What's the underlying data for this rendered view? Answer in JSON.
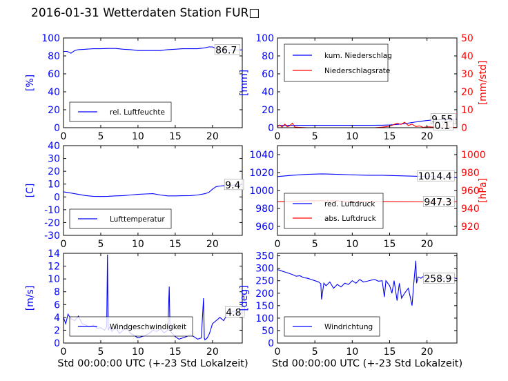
{
  "page": {
    "title": "2016-01-31 Wetterdaten Station FUR□"
  },
  "colors": {
    "blue": "#0000ff",
    "red": "#ff0000",
    "axis": "#000000"
  },
  "chart_data": [
    {
      "type": "line",
      "panel": "top-left",
      "ylabel": "[%]",
      "xlabel": "",
      "xlim": [
        0,
        24
      ],
      "ylim": [
        0,
        100
      ],
      "xticks": [
        0,
        5,
        10,
        15,
        20
      ],
      "yticks": [
        0,
        20,
        40,
        60,
        80,
        100
      ],
      "legend_position": "lower-left",
      "annotation": {
        "text": "86.7",
        "x": 20.4,
        "y": 86.7
      },
      "series": [
        {
          "name": "rel. Luftfeuchte",
          "axis": "left",
          "color": "#0000ff",
          "x": [
            0,
            0.5,
            1,
            1.5,
            2,
            3,
            4,
            5,
            6,
            7,
            8,
            9,
            10,
            11,
            12,
            13,
            14,
            15,
            16,
            17,
            18,
            19,
            19.5,
            20,
            20.5,
            21,
            21.5,
            22,
            22.5,
            23,
            24
          ],
          "y": [
            85,
            85,
            83,
            86,
            87,
            87.5,
            88,
            88,
            88.3,
            88.3,
            87.5,
            87,
            86,
            86,
            86,
            86,
            87,
            87.5,
            88,
            88,
            88,
            89,
            90,
            90,
            88,
            87.5,
            86,
            86,
            86.5,
            86.7,
            86.7
          ]
        }
      ]
    },
    {
      "type": "line",
      "panel": "top-right",
      "ylabel": "[mm]",
      "y2label": "[mm/std]",
      "xlabel": "",
      "xlim": [
        0,
        24
      ],
      "ylim": [
        0,
        100
      ],
      "y2lim": [
        0,
        50
      ],
      "xticks": [
        0,
        5,
        10,
        15,
        20
      ],
      "yticks": [
        0,
        20,
        40,
        60,
        80,
        100
      ],
      "y2ticks": [
        0,
        10,
        20,
        30,
        40,
        50
      ],
      "legend_position": "upper-left",
      "annotations": [
        {
          "text": "9.55",
          "x": 20.6,
          "y": 9.55
        },
        {
          "text": "0.1",
          "x": 21.0,
          "y": 2.5
        }
      ],
      "series": [
        {
          "name": "kum. Niederschlag",
          "axis": "left",
          "color": "#0000ff",
          "x": [
            0,
            2,
            4,
            6,
            8,
            10,
            12,
            14,
            15,
            16,
            17,
            18,
            19,
            20,
            21,
            22,
            23,
            24
          ],
          "y": [
            2.5,
            2.6,
            2.6,
            2.6,
            2.6,
            2.6,
            2.6,
            2.8,
            3.0,
            3.6,
            4.5,
            5.8,
            7.0,
            8.0,
            8.8,
            9.2,
            9.5,
            9.55
          ]
        },
        {
          "name": "Niederschlagsrate",
          "axis": "right",
          "color": "#ff0000",
          "x": [
            0,
            0.3,
            0.6,
            1,
            1.3,
            1.6,
            2,
            2.3,
            3,
            4,
            13,
            14,
            15,
            15.5,
            16,
            16.5,
            17,
            17.5,
            18,
            18.5,
            19,
            19.5,
            20,
            21,
            22,
            22.5,
            23,
            24
          ],
          "y": [
            0.5,
            1.5,
            0.3,
            2,
            0.5,
            1,
            2.5,
            0.4,
            0.2,
            0,
            0,
            0.3,
            0.8,
            1.6,
            2.5,
            1.8,
            3,
            1.2,
            2,
            0.6,
            1,
            0.2,
            0.5,
            0.3,
            0.2,
            3.5,
            0.3,
            0.1
          ]
        }
      ]
    },
    {
      "type": "line",
      "panel": "middle-left",
      "ylabel": "[C]",
      "xlabel": "",
      "xlim": [
        0,
        24
      ],
      "ylim": [
        -30,
        40
      ],
      "xticks": [
        0,
        5,
        10,
        15,
        20
      ],
      "yticks": [
        -30,
        -20,
        -10,
        0,
        10,
        20,
        30,
        40
      ],
      "legend_position": "lower-left",
      "annotation": {
        "text": "9.4",
        "x": 21.7,
        "y": 9.4
      },
      "series": [
        {
          "name": "Lufttemperatur",
          "axis": "left",
          "color": "#0000ff",
          "x": [
            0,
            1,
            2,
            3,
            4,
            5,
            6,
            7,
            8,
            9,
            10,
            11,
            12,
            13,
            14,
            15,
            16,
            17,
            18,
            19,
            19.5,
            20,
            20.5,
            21,
            22,
            23,
            24
          ],
          "y": [
            4,
            3,
            2,
            1,
            0.5,
            0.3,
            0.5,
            0.8,
            1,
            1.5,
            2,
            2.3,
            2.5,
            1.5,
            0.8,
            0.8,
            0.9,
            1,
            1.5,
            2.5,
            3.5,
            6,
            8,
            8.5,
            9,
            9.4,
            9.4
          ]
        }
      ]
    },
    {
      "type": "line",
      "panel": "middle-right",
      "ylabel": "",
      "y2label": "[hPa]",
      "xlabel": "",
      "xlim": [
        0,
        24
      ],
      "ylim": [
        950,
        1050
      ],
      "y2lim": [
        910,
        1010
      ],
      "xticks": [
        0,
        5,
        10,
        15,
        20
      ],
      "yticks": [
        960,
        980,
        1000,
        1020,
        1040
      ],
      "y2ticks": [
        920,
        940,
        960,
        980,
        1000
      ],
      "legend_position": "lower-left",
      "annotations": [
        {
          "text": "1014.4",
          "x": 18.8,
          "y": 1016
        },
        {
          "text": "947.3",
          "x": 19.6,
          "y": 987.3
        }
      ],
      "series": [
        {
          "name": "red. Luftdruck",
          "axis": "left",
          "color": "#0000ff",
          "x": [
            0,
            2,
            4,
            6,
            8,
            10,
            12,
            14,
            16,
            18,
            20,
            22,
            24
          ],
          "y": [
            1015.5,
            1017,
            1018,
            1018.5,
            1018,
            1017.5,
            1017,
            1017,
            1016.5,
            1016,
            1015.5,
            1015,
            1014.4
          ]
        },
        {
          "name": "abs. Luftdruck",
          "axis": "right",
          "color": "#ff0000",
          "x": [
            0,
            2,
            4,
            6,
            8,
            10,
            12,
            14,
            16,
            18,
            20,
            22,
            24
          ],
          "y": [
            947.5,
            948,
            948.5,
            948.5,
            948.3,
            948,
            947.8,
            947.6,
            947.5,
            947.4,
            947.3,
            947.3,
            947.3
          ]
        }
      ]
    },
    {
      "type": "line",
      "panel": "bottom-left",
      "ylabel": "[m/s]",
      "xlabel": "Std 00:00:00 UTC (+-23 Std Lokalzeit)",
      "xlim": [
        0,
        24
      ],
      "ylim": [
        0,
        14
      ],
      "xticks": [
        0,
        5,
        10,
        15,
        20
      ],
      "yticks": [
        0,
        2,
        4,
        6,
        8,
        10,
        12,
        14
      ],
      "legend_position": "lower-center",
      "annotation": {
        "text": "4.8",
        "x": 21.8,
        "y": 4.8
      },
      "series": [
        {
          "name": "Windgeschwindigkeit",
          "axis": "left",
          "color": "#0000ff",
          "x": [
            0,
            0.3,
            0.6,
            1,
            1.5,
            2,
            2.5,
            3,
            3.5,
            4,
            4.5,
            5,
            5.5,
            5.8,
            5.9,
            6.0,
            6.2,
            6.5,
            7,
            7.5,
            8,
            8.5,
            9,
            9.5,
            10,
            10.5,
            11,
            11.5,
            12,
            12.5,
            13,
            13.5,
            14,
            14.2,
            14.3,
            14.4,
            14.6,
            15,
            15.5,
            16,
            16.5,
            17,
            17.5,
            18,
            18.5,
            18.8,
            18.9,
            19.0,
            19.3,
            19.6,
            20,
            20.5,
            21,
            21.5,
            22,
            22.5,
            23,
            23.5,
            24
          ],
          "y": [
            4.0,
            3.0,
            4.5,
            3.8,
            3.5,
            4.2,
            3.0,
            2.8,
            2.5,
            2.8,
            2.3,
            2.4,
            2.0,
            2.5,
            13.8,
            2.0,
            2.5,
            1.8,
            2.5,
            1.5,
            2.0,
            2.3,
            1.5,
            1.2,
            0.8,
            1.0,
            1.2,
            1.5,
            2.0,
            1.8,
            2.2,
            1.6,
            2.0,
            8.8,
            2.0,
            1.8,
            1.5,
            1.0,
            0.6,
            0.8,
            1.0,
            1.3,
            1.0,
            0.6,
            0.8,
            7.0,
            0.8,
            0.5,
            0.8,
            1.5,
            3.0,
            3.5,
            4.0,
            3.5,
            4.5,
            4.8,
            5.0,
            4.5,
            4.8
          ]
        }
      ]
    },
    {
      "type": "line",
      "panel": "bottom-right",
      "ylabel": "[deg]",
      "xlabel": "Std 00:00:00 UTC (+-23 Std Lokalzeit)",
      "xlim": [
        0,
        24
      ],
      "ylim": [
        0,
        360
      ],
      "xticks": [
        0,
        5,
        10,
        15,
        20
      ],
      "yticks": [
        0,
        50,
        100,
        150,
        200,
        250,
        300,
        350
      ],
      "legend_position": "lower-left",
      "annotation": {
        "text": "258.9",
        "x": 19.6,
        "y": 258.9
      },
      "series": [
        {
          "name": "Windrichtung",
          "axis": "left",
          "color": "#0000ff",
          "x": [
            0,
            0.5,
            1,
            1.5,
            2,
            2.5,
            3,
            3.5,
            4,
            4.5,
            5,
            5.5,
            5.8,
            5.9,
            6.2,
            6.5,
            7,
            7.5,
            8,
            8.5,
            9,
            9.5,
            10,
            10.5,
            11,
            11.5,
            12,
            12.5,
            13,
            13.5,
            14,
            14.3,
            14.5,
            15,
            15.3,
            15.6,
            16,
            16.3,
            16.6,
            17,
            17.5,
            18,
            18.2,
            18.5,
            18.6,
            18.8,
            19.2,
            19.6,
            20,
            20.5,
            21,
            21.5,
            22,
            22.5,
            23,
            23.5,
            24
          ],
          "y": [
            295,
            290,
            285,
            280,
            275,
            268,
            270,
            262,
            260,
            255,
            250,
            245,
            238,
            175,
            240,
            230,
            245,
            220,
            235,
            225,
            240,
            235,
            250,
            240,
            255,
            245,
            248,
            252,
            255,
            248,
            250,
            185,
            250,
            230,
            200,
            250,
            170,
            240,
            180,
            200,
            220,
            150,
            230,
            330,
            240,
            265,
            260,
            270,
            255,
            262,
            258,
            265,
            256,
            262,
            258,
            262,
            258.9
          ]
        }
      ]
    }
  ]
}
